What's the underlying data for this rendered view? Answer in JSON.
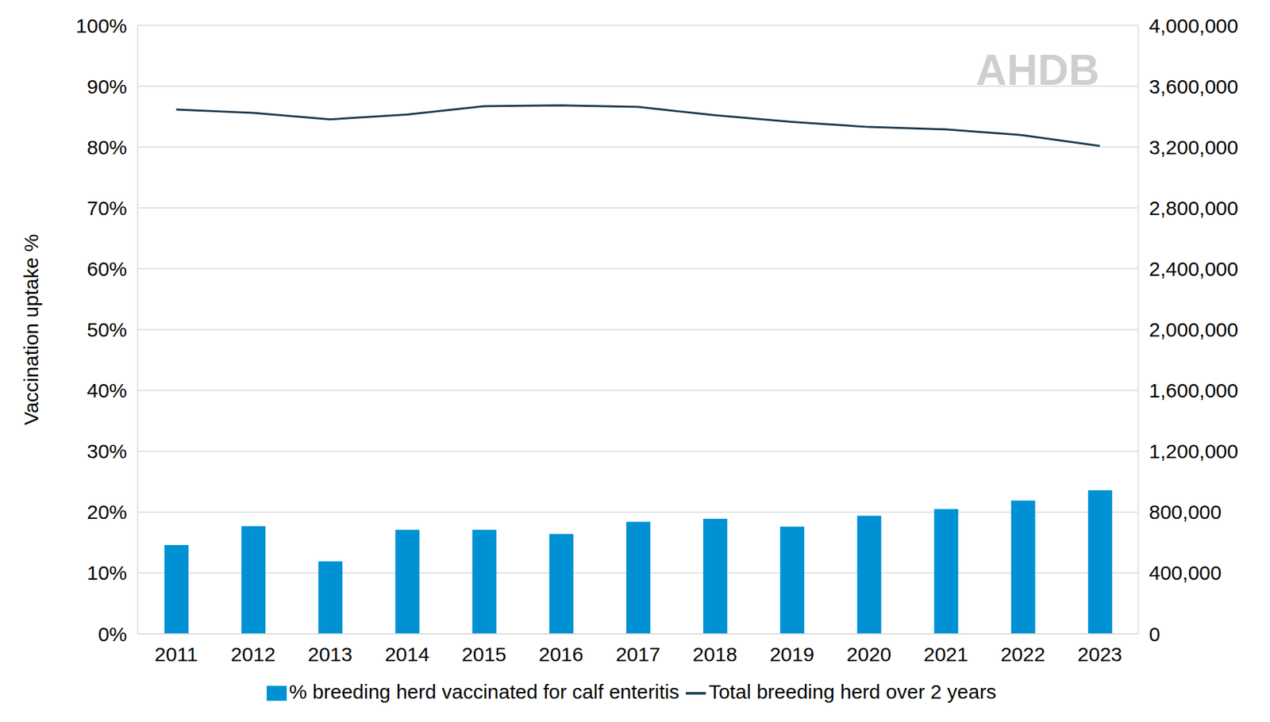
{
  "chart_data": {
    "type": "bar",
    "categories": [
      "2011",
      "2012",
      "2013",
      "2014",
      "2015",
      "2016",
      "2017",
      "2018",
      "2019",
      "2020",
      "2021",
      "2022",
      "2023"
    ],
    "series": [
      {
        "name": "% breeding herd vaccinated for calf enteritis",
        "type": "bar",
        "color": "#0091d5",
        "values": [
          14.6,
          17.7,
          11.9,
          17.1,
          17.1,
          16.4,
          18.4,
          18.9,
          17.6,
          19.4,
          20.5,
          21.9,
          23.6
        ]
      },
      {
        "name": "Total breeding herd over 2 years",
        "type": "line",
        "axis": "y2",
        "color": "#1f3b4d",
        "values": [
          3447000,
          3425000,
          3382000,
          3414000,
          3469000,
          3474000,
          3464000,
          3409000,
          3365000,
          3332000,
          3316000,
          3278000,
          3207000
        ]
      }
    ],
    "ylabel": "Vaccination uptake %",
    "ylim": [
      0,
      100
    ],
    "yticks": [
      {
        "value": 0,
        "label": "0%"
      },
      {
        "value": 10,
        "label": "10%"
      },
      {
        "value": 20,
        "label": "20%"
      },
      {
        "value": 30,
        "label": "30%"
      },
      {
        "value": 40,
        "label": "40%"
      },
      {
        "value": 50,
        "label": "50%"
      },
      {
        "value": 60,
        "label": "60%"
      },
      {
        "value": 70,
        "label": "70%"
      },
      {
        "value": 80,
        "label": "80%"
      },
      {
        "value": 90,
        "label": "90%"
      },
      {
        "value": 100,
        "label": "100%"
      }
    ],
    "y2lim": [
      0,
      4000000
    ],
    "y2ticks": [
      0,
      {
        "value": 400000,
        "label": "400,000"
      },
      {
        "value": 800000,
        "label": "800,000"
      },
      {
        "value": 1200000,
        "label": "1,200,000"
      },
      {
        "value": 1600000,
        "label": "1,600,000"
      },
      {
        "value": 2000000,
        "label": "2,000,000"
      },
      {
        "value": 2400000,
        "label": "2,400,000"
      },
      {
        "value": 2800000,
        "label": "2,800,000"
      },
      {
        "value": 3200000,
        "label": "3,200,000"
      },
      {
        "value": 3600000,
        "label": "3,600,000"
      },
      {
        "value": 4000000,
        "label": "4,000,000"
      }
    ],
    "grid": true,
    "legend": "bottom",
    "annotations": [
      "AHDB"
    ]
  }
}
